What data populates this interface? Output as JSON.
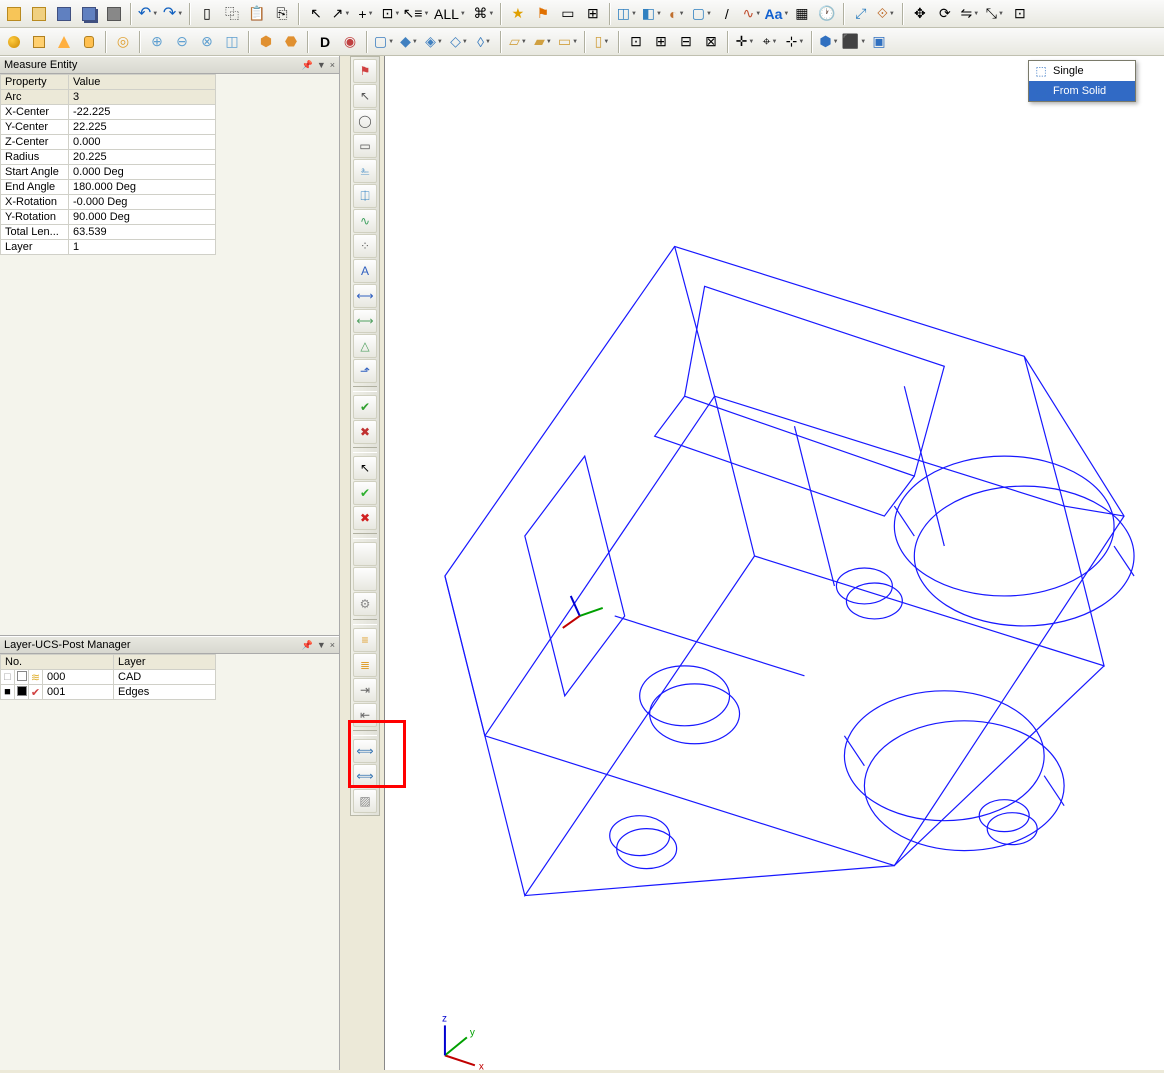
{
  "colors": {
    "panel_bg": "#ece9d8",
    "viewport_bg": "#ffffff",
    "wireframe": "#1818ff",
    "highlight": "#ff0000",
    "flyout_hover_bg": "#316ac5",
    "flyout_hover_fg": "#ffffff",
    "axis_x": "#c00000",
    "axis_y": "#00a000",
    "axis_z": "#0000d0"
  },
  "toolbar_row1": {
    "groups": [
      [
        "file-new",
        "file-open",
        "file-save",
        "file-saveall",
        "print"
      ],
      [
        "undo",
        "redo"
      ],
      [
        "cut",
        "copy",
        "paste",
        "copy-props"
      ],
      [
        "pointer",
        "arrow",
        "zoom-window",
        "zoom-extents",
        "layer-toggle",
        "all-label",
        "note"
      ],
      [
        "star",
        "flag",
        "bookmark",
        "props"
      ],
      [
        "wall",
        "half",
        "circle-half",
        "box-sel",
        "line",
        "wave",
        "wave2",
        "text-aa",
        "grid",
        "time"
      ],
      [
        "extra1",
        "extra2"
      ],
      [
        "move",
        "copy-obj",
        "rotate",
        "mirror",
        "scale",
        "extra3"
      ]
    ],
    "labels": {
      "all-label": "ALL"
    }
  },
  "toolbar_row2": {
    "groups": [
      [
        "prim-sphere",
        "prim-box",
        "prim-cone",
        "prim-cylinder"
      ],
      [
        "prim-torus"
      ],
      [
        "bool-union",
        "bool-sub",
        "bool-int",
        "bool-split"
      ],
      [
        "solid-hist",
        "solid-rev"
      ],
      [
        "text-3d",
        "brand"
      ],
      [
        "face1",
        "face2",
        "face3",
        "face4",
        "face5"
      ],
      [
        "srf1",
        "srf2",
        "srf3"
      ],
      [
        "srf4"
      ],
      [
        "dim1",
        "dim2",
        "dim3",
        "dim4"
      ],
      [
        "cross1",
        "cross2",
        "cross3"
      ],
      [
        "view-cube",
        "view-dd",
        "view-solid",
        "view-dd2",
        "view-extra"
      ]
    ]
  },
  "measure_panel": {
    "title": "Measure Entity",
    "columns": [
      "Property",
      "Value"
    ],
    "rows": [
      {
        "property": "Arc",
        "value": "3",
        "selected": true
      },
      {
        "property": "X-Center",
        "value": "-22.225"
      },
      {
        "property": "Y-Center",
        "value": "22.225"
      },
      {
        "property": "Z-Center",
        "value": "0.000"
      },
      {
        "property": "Radius",
        "value": "20.225"
      },
      {
        "property": "Start Angle",
        "value": "0.000 Deg"
      },
      {
        "property": "End Angle",
        "value": "180.000 Deg"
      },
      {
        "property": "X-Rotation",
        "value": "-0.000 Deg"
      },
      {
        "property": "Y-Rotation",
        "value": "90.000 Deg"
      },
      {
        "property": "Total Len...",
        "value": "63.539"
      },
      {
        "property": "Layer",
        "value": "1"
      }
    ]
  },
  "layer_panel": {
    "title": "Layer-UCS-Post Manager",
    "columns": [
      "No.",
      "Layer"
    ],
    "rows": [
      {
        "checked": false,
        "color": "#ffffff",
        "mark": "layers",
        "no": "000",
        "layer": "CAD"
      },
      {
        "checked": true,
        "color": "#000000",
        "mark": "check",
        "no": "001",
        "layer": "Edges"
      }
    ]
  },
  "vertical_toolbar": [
    {
      "name": "sel-flag",
      "glyph": "⚑",
      "color": "#d04040"
    },
    {
      "name": "sel-line",
      "glyph": "↖",
      "color": "#555"
    },
    {
      "name": "sel-arc",
      "glyph": "◯",
      "color": "#555"
    },
    {
      "name": "sel-rect",
      "glyph": "▭",
      "color": "#555"
    },
    {
      "name": "sel-tool1",
      "glyph": "⎁",
      "color": "#3080c0"
    },
    {
      "name": "sel-tool2",
      "glyph": "⎅",
      "color": "#3080c0"
    },
    {
      "name": "sel-wave",
      "glyph": "∿",
      "color": "#40a060"
    },
    {
      "name": "sel-dots",
      "glyph": "⁘",
      "color": "#666"
    },
    {
      "name": "sel-text",
      "glyph": "A",
      "color": "#3060c0"
    },
    {
      "name": "sel-dim1",
      "glyph": "⟷",
      "color": "#3060c0"
    },
    {
      "name": "sel-dim2",
      "glyph": "⟷",
      "color": "#50a060"
    },
    {
      "name": "sel-dim3",
      "glyph": "△",
      "color": "#50a060"
    },
    {
      "name": "sel-dim4",
      "glyph": "⬏",
      "color": "#3060c0"
    },
    {
      "sep": true
    },
    {
      "name": "apply-green",
      "glyph": "✔",
      "color": "#30a030"
    },
    {
      "name": "cancel-red",
      "glyph": "✖",
      "color": "#c03030"
    },
    {
      "sep": true
    },
    {
      "name": "pointer",
      "glyph": "↖",
      "color": "#000"
    },
    {
      "name": "check-big",
      "glyph": "✔",
      "color": "#30b030"
    },
    {
      "name": "x-big",
      "glyph": "✖",
      "color": "#d02020"
    },
    {
      "sep": true
    },
    {
      "name": "blank1",
      "glyph": " ",
      "color": "#999"
    },
    {
      "name": "blank2",
      "glyph": " ",
      "color": "#999"
    },
    {
      "name": "gear",
      "glyph": "⚙",
      "color": "#888"
    },
    {
      "sep": true
    },
    {
      "name": "ruler1",
      "glyph": "≡",
      "color": "#e0a030"
    },
    {
      "name": "ruler2",
      "glyph": "≣",
      "color": "#e0a030"
    },
    {
      "name": "arrow-in",
      "glyph": "⇥",
      "color": "#666"
    },
    {
      "name": "arrow-out",
      "glyph": "⇤",
      "color": "#666"
    },
    {
      "sep": true
    },
    {
      "name": "dim-h",
      "glyph": "⟺",
      "color": "#3070b0"
    },
    {
      "name": "dim-v",
      "glyph": "⟺",
      "color": "#3070b0"
    },
    {
      "name": "hatch",
      "glyph": "▨",
      "color": "#888"
    }
  ],
  "flyout": {
    "items": [
      {
        "label": "Single",
        "icon": "cube",
        "hover": false
      },
      {
        "label": "From Solid",
        "icon": "cube-solid",
        "hover": true
      }
    ]
  },
  "axis_indicator": {
    "labels": [
      "x",
      "y",
      "z"
    ]
  },
  "wireframe": {
    "note": "approximate isometric wireframe of a machined block with cylindrical bores",
    "stroke": "#1818ff",
    "stroke_width": 1.2
  }
}
